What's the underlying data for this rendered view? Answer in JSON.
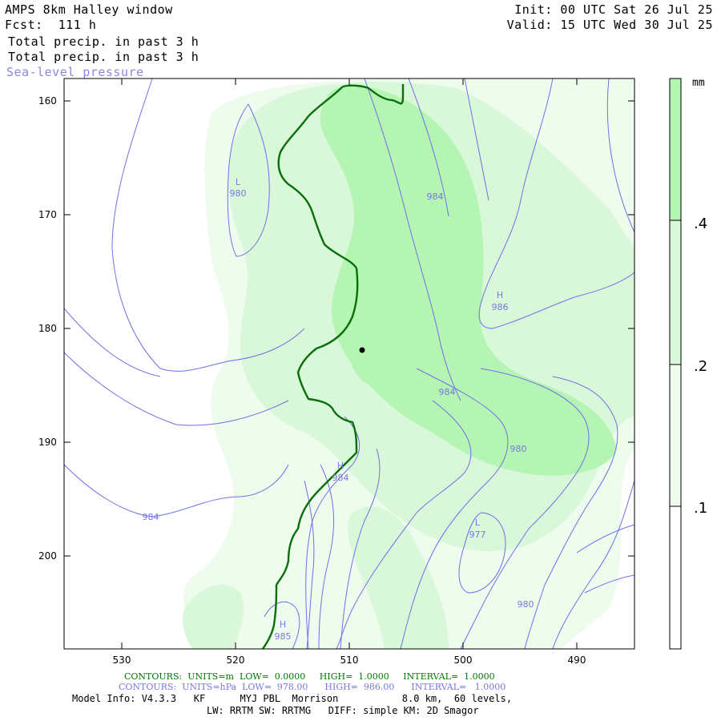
{
  "header": {
    "title": "AMPS 8km Halley window",
    "forecast": "Fcst:  111 h",
    "field1": "Total precip. in past 3 h",
    "field2": "Total precip. in past 3 h",
    "field3": "Sea-level pressure",
    "init": "Init: 00 UTC Sat 26 Jul 25",
    "valid": "Valid: 15 UTC Wed 30 Jul 25"
  },
  "axes": {
    "y_ticks": [
      "160",
      "170",
      "180",
      "190",
      "200"
    ],
    "x_ticks": [
      "530",
      "520",
      "510",
      "500",
      "490"
    ]
  },
  "colorbar": {
    "unit": "mm",
    "labels": [
      ".4",
      ".2",
      ".1"
    ],
    "colors": [
      "#b4f5b4",
      "#d9f8d9",
      "#eefcee",
      "#ffffff"
    ]
  },
  "contour_labels": {
    "low1": "L",
    "low1_val": "980",
    "high1": "H",
    "high1_val": "986",
    "high2": "H",
    "high2_val": "984",
    "low2": "L",
    "low2_val": "977",
    "high3": "H",
    "high3_val": "985",
    "c984a": "984",
    "c984b": "984",
    "c984c": "984",
    "c980a": "980",
    "c980b": "980"
  },
  "footer": {
    "line1": "CONTOURS:  UNITS=m  LOW=  0.0000     HIGH=  1.0000     INTERVAL=  1.0000",
    "line2": "CONTOURS:  UNITS=hPa  LOW=  978.00      HIGH=  986.00      INTERVAL=   1.0000",
    "line3": "Model Info: V4.3.3   KF      MYJ PBL  Morrison           8.0 km,  60 levels,",
    "line4": "LW: RRTM SW: RRTMG   DIFF: simple KM: 2D Smagor"
  },
  "colors": {
    "coast": "#0a6e0a",
    "isobar": "#6f6fe6",
    "precip_light": "#eefcee",
    "precip_mid": "#d9f8d9",
    "precip_high": "#b4f5b4"
  }
}
